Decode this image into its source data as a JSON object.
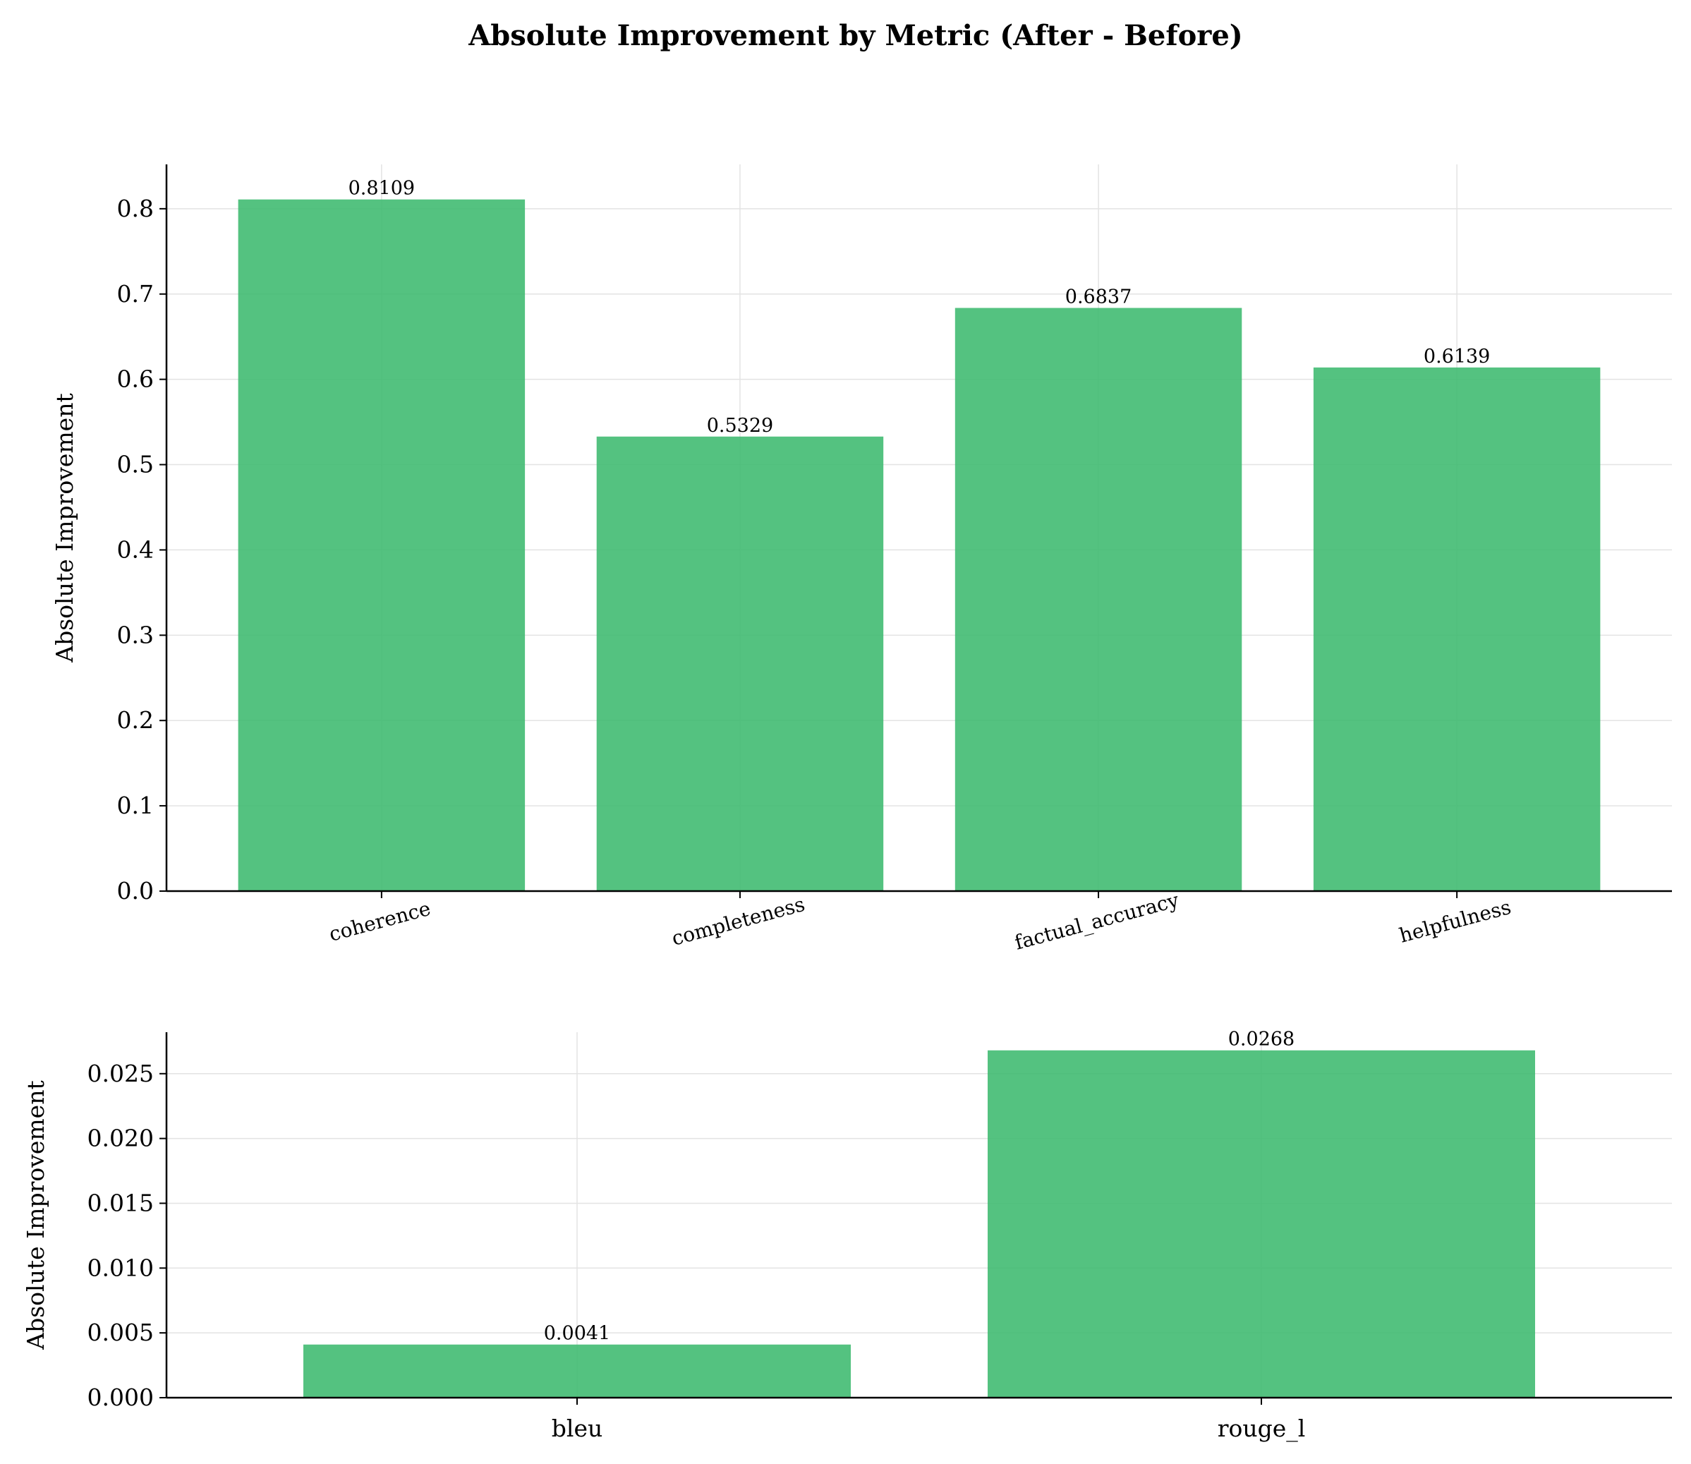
{
  "title": "Absolute Improvement by Metric (After - Before)",
  "bar_color": "#3cb96e",
  "chart_data": [
    {
      "type": "bar",
      "categories": [
        "coherence",
        "completeness",
        "factual_accuracy",
        "helpfulness"
      ],
      "values": [
        0.8109,
        0.5329,
        0.6837,
        0.6139
      ],
      "value_labels": [
        "0.8109",
        "0.5329",
        "0.6837",
        "0.6139"
      ],
      "ylabel": "Absolute Improvement",
      "ylim": [
        0,
        0.852
      ],
      "yticks": [
        0.0,
        0.1,
        0.2,
        0.3,
        0.4,
        0.5,
        0.6,
        0.7,
        0.8
      ],
      "ytick_labels": [
        "0.0",
        "0.1",
        "0.2",
        "0.3",
        "0.4",
        "0.5",
        "0.6",
        "0.7",
        "0.8"
      ],
      "xtick_rotation_deg": 15,
      "grid": true
    },
    {
      "type": "bar",
      "categories": [
        "bleu",
        "rouge_l"
      ],
      "values": [
        0.0041,
        0.0268
      ],
      "value_labels": [
        "0.0041",
        "0.0268"
      ],
      "ylabel": "Absolute Improvement",
      "ylim": [
        0,
        0.0282
      ],
      "yticks": [
        0.0,
        0.005,
        0.01,
        0.015,
        0.02,
        0.025
      ],
      "ytick_labels": [
        "0.000",
        "0.005",
        "0.010",
        "0.015",
        "0.020",
        "0.025"
      ],
      "xtick_rotation_deg": 0,
      "grid": true
    }
  ]
}
